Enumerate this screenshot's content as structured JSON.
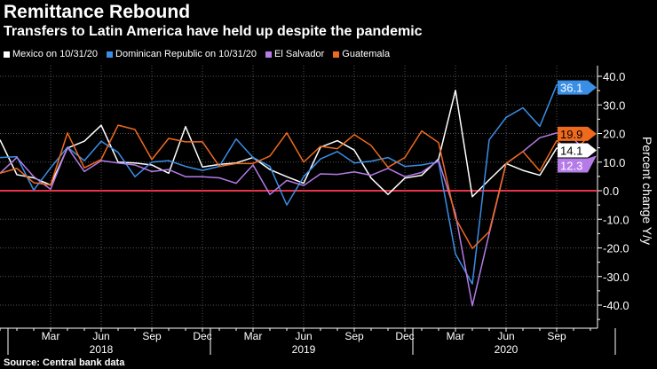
{
  "title": "Remittance Rebound",
  "subtitle": "Transfers to Latin America have held up despite the pandemic",
  "source": "Source: Central bank data",
  "chart_data": {
    "type": "line",
    "title": "Remittance Rebound",
    "ylabel": "Percent change Y/y",
    "ylim": [
      -45,
      44
    ],
    "yticks": [
      "40.0",
      "30.0",
      "20.0",
      "10.0",
      "0.0",
      "-10.0",
      "-20.0",
      "-30.0",
      "-40.0"
    ],
    "ytick_values": [
      40,
      30,
      20,
      10,
      0,
      -10,
      -20,
      -30,
      -40
    ],
    "x_start": "2017-12",
    "x_end": "2020-11",
    "xtick_labels": [
      {
        "label": "Mar",
        "month_index": 3
      },
      {
        "label": "Jun",
        "month_index": 6
      },
      {
        "label": "Sep",
        "month_index": 9
      },
      {
        "label": "Dec",
        "month_index": 12
      },
      {
        "label": "Mar",
        "month_index": 15
      },
      {
        "label": "Jun",
        "month_index": 18
      },
      {
        "label": "Sep",
        "month_index": 21
      },
      {
        "label": "Dec",
        "month_index": 24
      },
      {
        "label": "Mar",
        "month_index": 27
      },
      {
        "label": "Jun",
        "month_index": 30
      },
      {
        "label": "Sep",
        "month_index": 33
      }
    ],
    "year_labels": [
      {
        "label": "2018",
        "month_index": 6
      },
      {
        "label": "2019",
        "month_index": 18
      },
      {
        "label": "2020",
        "month_index": 30
      }
    ],
    "grid": true,
    "legend_position": "top-left",
    "series": [
      {
        "name": "Mexico on 10/31/20",
        "color": "#ffffff",
        "last_label": "14.1",
        "values": [
          17.8,
          5.6,
          4.5,
          2.0,
          14.9,
          17.3,
          22.9,
          10.0,
          9.7,
          9.0,
          6.1,
          22.4,
          8.3,
          9.2,
          9.7,
          11.6,
          7.4,
          4.9,
          2.6,
          15.2,
          17.5,
          14.2,
          4.4,
          -1.3,
          4.4,
          5.4,
          11.1,
          35.1,
          -2.1,
          3.8,
          9.5,
          7.1,
          5.4,
          14.9,
          14.1,
          null
        ]
      },
      {
        "name": "Dominican Republic on 10/31/20",
        "color": "#3a8ee6",
        "last_label": "36.1",
        "values": [
          11.6,
          11.9,
          0.2,
          8.0,
          15.2,
          10.5,
          17.3,
          13.4,
          4.9,
          10.0,
          10.5,
          8.5,
          7.1,
          8.5,
          18.1,
          11.6,
          8.5,
          -5.0,
          4.9,
          11.1,
          13.7,
          9.7,
          10.3,
          11.6,
          8.5,
          9.0,
          10.1,
          -22.1,
          -32.6,
          17.8,
          25.6,
          29.0,
          22.5,
          37.0,
          36.1,
          null
        ]
      },
      {
        "name": "El Salvador",
        "color": "#b57be8",
        "last_label": "12.3",
        "values": [
          6.1,
          11.6,
          4.9,
          0.5,
          15.2,
          6.7,
          10.5,
          9.7,
          9.0,
          6.7,
          7.4,
          4.9,
          4.9,
          4.5,
          2.6,
          9.0,
          -1.3,
          3.6,
          1.8,
          5.9,
          5.7,
          6.6,
          5.4,
          7.8,
          4.9,
          6.4,
          10.6,
          -8.0,
          -40.2,
          -15.0,
          9.5,
          13.7,
          18.5,
          20.2,
          18.1,
          12.3
        ]
      },
      {
        "name": "Guatemala",
        "color": "#f06a1e",
        "last_label": "19.9",
        "values": [
          6.1,
          7.8,
          2.8,
          2.0,
          20.2,
          8.0,
          10.9,
          22.9,
          21.4,
          10.9,
          18.3,
          17.1,
          17.1,
          8.5,
          9.5,
          9.5,
          12.1,
          20.2,
          10.0,
          15.5,
          14.7,
          19.6,
          15.8,
          8.2,
          11.6,
          20.9,
          16.8,
          -9.6,
          -20.2,
          -14.3,
          9.5,
          13.7,
          6.9,
          17.5,
          13.2,
          19.9
        ]
      }
    ],
    "zero_line_color": "#e8334a"
  }
}
